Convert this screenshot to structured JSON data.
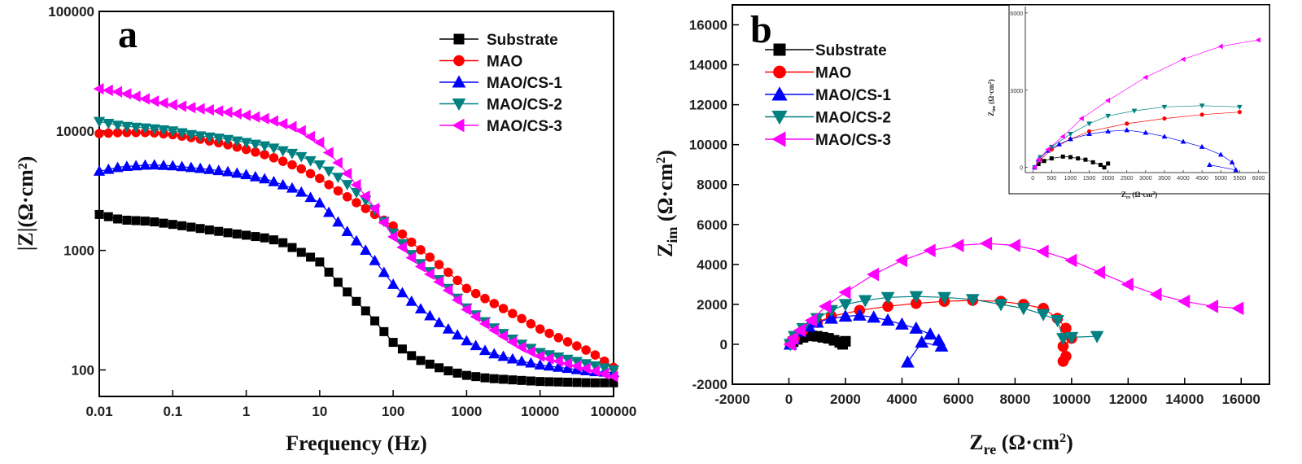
{
  "series_styles": [
    {
      "name": "Substrate",
      "color": "#000000",
      "marker": "square"
    },
    {
      "name": "MAO",
      "color": "#ff0000",
      "marker": "circle"
    },
    {
      "name": "MAO/CS-1",
      "color": "#0000ff",
      "marker": "triangle-up"
    },
    {
      "name": "MAO/CS-2",
      "color": "#008080",
      "marker": "triangle-down"
    },
    {
      "name": "MAO/CS-3",
      "color": "#ff00ff",
      "marker": "triangle-left"
    }
  ],
  "chart_data": [
    {
      "panel": "a",
      "type": "line",
      "title": "",
      "xlabel": "Frequency (Hz)",
      "ylabel": "|Z|(Ω·cm²)",
      "xscale": "log",
      "yscale": "log",
      "xlim": [
        0.01,
        100000
      ],
      "ylim": [
        60,
        100000
      ],
      "xticks": [
        "0.01",
        "0.1",
        "1",
        "10",
        "100",
        "1000",
        "10000",
        "100000"
      ],
      "yticks": [
        "100",
        "1000",
        "10000",
        "100000"
      ],
      "legend_position": "top-right",
      "series": [
        {
          "name": "Substrate",
          "points": [
            [
              0.01,
              2000
            ],
            [
              0.02,
              1800
            ],
            [
              0.05,
              1750
            ],
            [
              0.1,
              1650
            ],
            [
              0.2,
              1550
            ],
            [
              0.5,
              1420
            ],
            [
              1,
              1340
            ],
            [
              2,
              1260
            ],
            [
              3,
              1180
            ],
            [
              5,
              1000
            ],
            [
              10,
              800
            ],
            [
              20,
              500
            ],
            [
              50,
              280
            ],
            [
              100,
              170
            ],
            [
              200,
              125
            ],
            [
              500,
              100
            ],
            [
              1000,
              90
            ],
            [
              2000,
              85
            ],
            [
              5000,
              82
            ],
            [
              10000,
              80
            ],
            [
              50000,
              78
            ],
            [
              100000,
              78
            ]
          ]
        },
        {
          "name": "MAO",
          "points": [
            [
              0.01,
              9500
            ],
            [
              0.02,
              9700
            ],
            [
              0.05,
              9700
            ],
            [
              0.1,
              9300
            ],
            [
              0.2,
              8700
            ],
            [
              0.5,
              7800
            ],
            [
              1,
              7000
            ],
            [
              2,
              6200
            ],
            [
              5,
              5000
            ],
            [
              10,
              4000
            ],
            [
              20,
              3000
            ],
            [
              50,
              2100
            ],
            [
              100,
              1600
            ],
            [
              200,
              1100
            ],
            [
              500,
              700
            ],
            [
              1000,
              480
            ],
            [
              2000,
              380
            ],
            [
              5000,
              280
            ],
            [
              10000,
              220
            ],
            [
              20000,
              180
            ],
            [
              50000,
              140
            ],
            [
              100000,
              105
            ]
          ]
        },
        {
          "name": "MAO/CS-1",
          "points": [
            [
              0.01,
              4600
            ],
            [
              0.02,
              5000
            ],
            [
              0.05,
              5200
            ],
            [
              0.1,
              5100
            ],
            [
              0.2,
              4900
            ],
            [
              0.5,
              4600
            ],
            [
              1,
              4300
            ],
            [
              2,
              3900
            ],
            [
              5,
              3200
            ],
            [
              10,
              2500
            ],
            [
              20,
              1600
            ],
            [
              50,
              900
            ],
            [
              100,
              520
            ],
            [
              200,
              350
            ],
            [
              500,
              230
            ],
            [
              1000,
              175
            ],
            [
              2000,
              140
            ],
            [
              5000,
              120
            ],
            [
              10000,
              110
            ],
            [
              50000,
              97
            ],
            [
              100000,
              95
            ]
          ]
        },
        {
          "name": "MAO/CS-2",
          "points": [
            [
              0.01,
              12000
            ],
            [
              0.02,
              11000
            ],
            [
              0.05,
              10500
            ],
            [
              0.1,
              10000
            ],
            [
              0.2,
              9200
            ],
            [
              0.5,
              8600
            ],
            [
              1,
              8000
            ],
            [
              2,
              7400
            ],
            [
              5,
              6300
            ],
            [
              10,
              5200
            ],
            [
              20,
              3900
            ],
            [
              50,
              2400
            ],
            [
              100,
              1400
            ],
            [
              200,
              850
            ],
            [
              500,
              520
            ],
            [
              1000,
              330
            ],
            [
              2000,
              240
            ],
            [
              5000,
              170
            ],
            [
              10000,
              140
            ],
            [
              50000,
              110
            ],
            [
              100000,
              100
            ]
          ]
        },
        {
          "name": "MAO/CS-3",
          "points": [
            [
              0.01,
              22500
            ],
            [
              0.02,
              21000
            ],
            [
              0.05,
              18000
            ],
            [
              0.1,
              16500
            ],
            [
              0.2,
              15500
            ],
            [
              0.5,
              14500
            ],
            [
              1,
              13500
            ],
            [
              2,
              12500
            ],
            [
              5,
              10500
            ],
            [
              10,
              8000
            ],
            [
              20,
              5000
            ],
            [
              50,
              2500
            ],
            [
              100,
              1300
            ],
            [
              200,
              800
            ],
            [
              500,
              500
            ],
            [
              1000,
              320
            ],
            [
              2000,
              230
            ],
            [
              5000,
              160
            ],
            [
              10000,
              130
            ],
            [
              50000,
              100
            ],
            [
              100000,
              88
            ]
          ]
        }
      ]
    },
    {
      "panel": "b",
      "type": "scatter",
      "title": "",
      "xlabel": "Zre (Ω·cm²)",
      "ylabel": "Zim (Ω·cm²)",
      "xlim": [
        -2000,
        17000
      ],
      "ylim": [
        -2000,
        17000
      ],
      "xticks": [
        "-2000",
        "0",
        "2000",
        "4000",
        "6000",
        "8000",
        "10000",
        "12000",
        "14000",
        "16000"
      ],
      "yticks": [
        "-2000",
        "0",
        "2000",
        "4000",
        "6000",
        "8000",
        "10000",
        "12000",
        "14000",
        "16000"
      ],
      "legend_position": "top-left",
      "series": [
        {
          "name": "Substrate",
          "points": [
            [
              50,
              0
            ],
            [
              150,
              130
            ],
            [
              300,
              250
            ],
            [
              500,
              350
            ],
            [
              800,
              420
            ],
            [
              1000,
              400
            ],
            [
              1200,
              350
            ],
            [
              1400,
              300
            ],
            [
              1600,
              200
            ],
            [
              1800,
              100
            ],
            [
              1900,
              0
            ],
            [
              2000,
              150
            ]
          ]
        },
        {
          "name": "MAO",
          "points": [
            [
              50,
              0
            ],
            [
              200,
              300
            ],
            [
              500,
              700
            ],
            [
              1000,
              1100
            ],
            [
              1500,
              1400
            ],
            [
              2500,
              1700
            ],
            [
              3500,
              1900
            ],
            [
              4500,
              2050
            ],
            [
              5500,
              2150
            ],
            [
              6500,
              2200
            ],
            [
              7500,
              2150
            ],
            [
              8300,
              2000
            ],
            [
              9000,
              1800
            ],
            [
              9500,
              1300
            ],
            [
              9800,
              800
            ],
            [
              10000,
              300
            ],
            [
              9700,
              -100
            ],
            [
              9800,
              -600
            ],
            [
              9700,
              -850
            ]
          ]
        },
        {
          "name": "MAO/CS-1",
          "points": [
            [
              50,
              0
            ],
            [
              150,
              300
            ],
            [
              400,
              650
            ],
            [
              700,
              900
            ],
            [
              1000,
              1100
            ],
            [
              1500,
              1300
            ],
            [
              2000,
              1400
            ],
            [
              2500,
              1450
            ],
            [
              3000,
              1350
            ],
            [
              3500,
              1200
            ],
            [
              4000,
              1000
            ],
            [
              4500,
              800
            ],
            [
              5000,
              500
            ],
            [
              5300,
              200
            ],
            [
              5400,
              -100
            ],
            [
              4700,
              100
            ],
            [
              4200,
              -900
            ]
          ]
        },
        {
          "name": "MAO/CS-2",
          "points": [
            [
              50,
              0
            ],
            [
              200,
              400
            ],
            [
              500,
              800
            ],
            [
              1000,
              1300
            ],
            [
              1500,
              1700
            ],
            [
              2000,
              2000
            ],
            [
              2700,
              2200
            ],
            [
              3500,
              2350
            ],
            [
              4500,
              2400
            ],
            [
              5500,
              2350
            ],
            [
              6500,
              2250
            ],
            [
              7500,
              2000
            ],
            [
              8300,
              1800
            ],
            [
              9000,
              1500
            ],
            [
              9500,
              1200
            ],
            [
              9700,
              300
            ],
            [
              10000,
              350
            ],
            [
              10900,
              400
            ]
          ]
        },
        {
          "name": "MAO/CS-3",
          "points": [
            [
              50,
              0
            ],
            [
              150,
              300
            ],
            [
              400,
              700
            ],
            [
              800,
              1200
            ],
            [
              1300,
              1900
            ],
            [
              2000,
              2600
            ],
            [
              3000,
              3500
            ],
            [
              4000,
              4200
            ],
            [
              5000,
              4700
            ],
            [
              6000,
              4950
            ],
            [
              7000,
              5050
            ],
            [
              8000,
              4950
            ],
            [
              9000,
              4650
            ],
            [
              10000,
              4200
            ],
            [
              11000,
              3600
            ],
            [
              12000,
              3000
            ],
            [
              13000,
              2500
            ],
            [
              14000,
              2150
            ],
            [
              15000,
              1900
            ],
            [
              15900,
              1800
            ]
          ]
        }
      ],
      "inset": {
        "xlabel": "Zre (Ω·cm²)",
        "ylabel": "Zim (Ω·cm²)",
        "xlim": [
          -200,
          6250
        ],
        "ylim": [
          -200,
          6250
        ],
        "xticks": [
          "0",
          "500",
          "1000",
          "1500",
          "2000",
          "2500",
          "3000",
          "3500",
          "4000",
          "4500",
          "5000",
          "5500",
          "6000"
        ],
        "yticks": [
          "0",
          "3000",
          "6000"
        ]
      }
    }
  ]
}
